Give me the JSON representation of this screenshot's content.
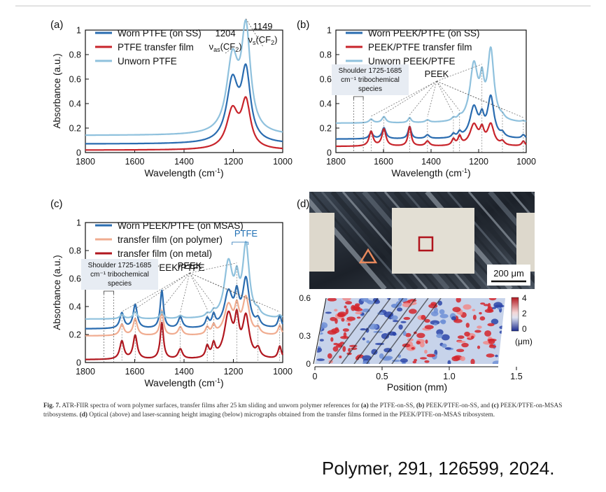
{
  "chart_data": [
    {
      "panel": "(a)",
      "type": "line",
      "xlabel": "Wavelength (cm",
      "xlabel_sup": "-1",
      "xlabel_close": ")",
      "ylabel": "Absorbance (a.u.)",
      "xlim": [
        1800,
        1000
      ],
      "ylim": [
        0,
        1
      ],
      "xticks": [
        1800,
        1600,
        1400,
        1200,
        1000
      ],
      "yticks": [
        0,
        0.2,
        0.4,
        0.6,
        0.8,
        1
      ],
      "legend": "top-left",
      "annotations": [
        {
          "peak": "1204",
          "label_main": "ν",
          "label_sub": "as",
          "label_tail": "(CF",
          "label_sub2": "2",
          "label_end": ")"
        },
        {
          "peak": "1149",
          "label_main": "ν",
          "label_sub": "s",
          "label_tail": "(CF",
          "label_sub2": "2",
          "label_end": ")"
        }
      ],
      "series": [
        {
          "name": "Worn PTFE (on SS)",
          "color": "#2a6cb0",
          "baseline": 0.07,
          "peaks": [
            [
              1204,
              0.49,
              28
            ],
            [
              1149,
              0.55,
              22
            ]
          ]
        },
        {
          "name": "PTFE transfer film",
          "color": "#c8242b",
          "baseline": 0.02,
          "peaks": [
            [
              1204,
              0.31,
              28
            ],
            [
              1149,
              0.37,
              22
            ]
          ]
        },
        {
          "name": "Unworn PTFE",
          "color": "#8fc1dd",
          "baseline": 0.14,
          "peaks": [
            [
              1204,
              0.59,
              28
            ],
            [
              1149,
              0.82,
              22
            ]
          ]
        }
      ]
    },
    {
      "panel": "(b)",
      "type": "line",
      "xlabel": "Wavelength (cm",
      "xlabel_sup": "-1",
      "xlabel_close": ")",
      "ylabel": "",
      "xlim": [
        1800,
        1000
      ],
      "ylim": [
        0,
        1
      ],
      "xticks": [
        1800,
        1600,
        1400,
        1200,
        1000
      ],
      "yticks": [
        0,
        0.2,
        0.4,
        0.6,
        0.8,
        1
      ],
      "legend": "top-left",
      "peek_label": "PEEK",
      "shoulder_label": [
        "Shoulder 1725-1685",
        "cm⁻¹ tribochemical",
        "species"
      ],
      "series": [
        {
          "name": "Worn PEEK/PTFE (on SS)",
          "color": "#2a6cb0",
          "baseline": 0.11,
          "peaks": [
            [
              1652,
              0.05,
              10
            ],
            [
              1598,
              0.09,
              10
            ],
            [
              1490,
              0.1,
              8
            ],
            [
              1415,
              0.03,
              10
            ],
            [
              1306,
              0.03,
              8
            ],
            [
              1280,
              0.04,
              8
            ],
            [
              1220,
              0.25,
              20
            ],
            [
              1186,
              0.13,
              10
            ],
            [
              1149,
              0.33,
              16
            ],
            [
              1100,
              0.03,
              10
            ],
            [
              1012,
              0.03,
              8
            ]
          ]
        },
        {
          "name": "PEEK/PTFE transfer film",
          "color": "#c8242b",
          "baseline": 0.05,
          "peaks": [
            [
              1652,
              0.12,
              10
            ],
            [
              1598,
              0.14,
              10
            ],
            [
              1490,
              0.16,
              8
            ],
            [
              1415,
              0.04,
              10
            ],
            [
              1306,
              0.05,
              8
            ],
            [
              1280,
              0.07,
              8
            ],
            [
              1220,
              0.17,
              20
            ],
            [
              1186,
              0.11,
              10
            ],
            [
              1149,
              0.17,
              16
            ],
            [
              1100,
              0.03,
              10
            ],
            [
              1012,
              0.04,
              8
            ]
          ]
        },
        {
          "name": "Unworn PEEK/PTFE",
          "color": "#8fc1dd",
          "baseline": 0.24,
          "peaks": [
            [
              1652,
              0.03,
              10
            ],
            [
              1598,
              0.05,
              10
            ],
            [
              1490,
              0.04,
              8
            ],
            [
              1415,
              0.02,
              10
            ],
            [
              1306,
              0.02,
              8
            ],
            [
              1280,
              0.02,
              8
            ],
            [
              1220,
              0.46,
              20
            ],
            [
              1186,
              0.25,
              10
            ],
            [
              1149,
              0.57,
              16
            ],
            [
              1100,
              0.02,
              10
            ],
            [
              1012,
              0.01,
              8
            ]
          ]
        }
      ]
    },
    {
      "panel": "(c)",
      "type": "line",
      "xlabel": "Wavelength (cm",
      "xlabel_sup": "-1",
      "xlabel_close": ")",
      "ylabel": "Absorbance (a.u.)",
      "xlim": [
        1800,
        1000
      ],
      "ylim": [
        0,
        1
      ],
      "xticks": [
        1800,
        1600,
        1400,
        1200,
        1000
      ],
      "yticks": [
        0,
        0.2,
        0.4,
        0.6,
        0.8,
        1
      ],
      "legend": "top-left",
      "peek_label": "PEEK",
      "ptfe_label": "PTFE",
      "shoulder_label": [
        "Shoulder 1725-1685",
        "cm⁻¹ tribochemical",
        "species"
      ],
      "series": [
        {
          "name": "Worn PEEK/PTFE (on MSAS)",
          "color": "#2a6cb0",
          "baseline": 0.24,
          "peaks": [
            [
              1652,
              0.11,
              10
            ],
            [
              1598,
              0.17,
              10
            ],
            [
              1490,
              0.27,
              8
            ],
            [
              1415,
              0.08,
              10
            ],
            [
              1306,
              0.06,
              8
            ],
            [
              1280,
              0.08,
              8
            ],
            [
              1220,
              0.25,
              20
            ],
            [
              1186,
              0.19,
              10
            ],
            [
              1149,
              0.34,
              16
            ],
            [
              1100,
              0.05,
              10
            ],
            [
              1012,
              0.09,
              8
            ]
          ]
        },
        {
          "name": "transfer film (on polymer)",
          "color": "#f0ac90",
          "baseline": 0.19,
          "peaks": [
            [
              1652,
              0.08,
              10
            ],
            [
              1598,
              0.12,
              10
            ],
            [
              1490,
              0.18,
              8
            ],
            [
              1415,
              0.06,
              10
            ],
            [
              1306,
              0.05,
              8
            ],
            [
              1280,
              0.06,
              8
            ],
            [
              1220,
              0.21,
              20
            ],
            [
              1186,
              0.16,
              10
            ],
            [
              1149,
              0.26,
              16
            ],
            [
              1100,
              0.04,
              10
            ],
            [
              1012,
              0.07,
              8
            ]
          ]
        },
        {
          "name": "transfer film (on metal)",
          "color": "#b1171f",
          "baseline": 0.02,
          "peaks": [
            [
              1652,
              0.13,
              10
            ],
            [
              1598,
              0.17,
              10
            ],
            [
              1490,
              0.26,
              8
            ],
            [
              1415,
              0.07,
              10
            ],
            [
              1306,
              0.08,
              8
            ],
            [
              1280,
              0.09,
              8
            ],
            [
              1220,
              0.31,
              20
            ],
            [
              1186,
              0.23,
              10
            ],
            [
              1149,
              0.29,
              16
            ],
            [
              1100,
              0.06,
              10
            ],
            [
              1012,
              0.09,
              8
            ]
          ]
        },
        {
          "name": "Unworn PEEK/PTFE",
          "color": "#8fc1dd",
          "baseline": 0.31,
          "peaks": [
            [
              1652,
              0.03,
              10
            ],
            [
              1598,
              0.05,
              10
            ],
            [
              1490,
              0.05,
              8
            ],
            [
              1415,
              0.02,
              10
            ],
            [
              1306,
              0.02,
              8
            ],
            [
              1280,
              0.03,
              8
            ],
            [
              1220,
              0.39,
              20
            ],
            [
              1186,
              0.2,
              10
            ],
            [
              1149,
              0.51,
              16
            ],
            [
              1100,
              0.03,
              10
            ],
            [
              1012,
              0.02,
              8
            ]
          ]
        }
      ]
    },
    {
      "panel": "(d)",
      "type": "heatmap",
      "scale_bar": "200 μm",
      "xlabel": "Position (mm)",
      "xlim": [
        0,
        1.5
      ],
      "xticks": [
        "0",
        "0.5",
        "1.0",
        "1.5"
      ],
      "yticks": [
        "0",
        "0.3",
        "0.6"
      ],
      "colorbar_ticks": [
        "4",
        "2",
        "0"
      ],
      "colorbar_unit": "(μm)"
    }
  ],
  "caption": {
    "lead": "Fig. 7.",
    "text1": " ATR-FIIR spectra of worn polymer surfaces, transfer films after 25 km sliding and unworn polymer references for ",
    "b1": "(a)",
    "text2": " the PTFE-on-SS, ",
    "b2": "(b)",
    "text3": " PEEK/PTFE-on-SS, and ",
    "b3": "(c)",
    "text4": " PEEK/PTFE-on-MSAS tribosystems. ",
    "b4": "(d)",
    "text5": " Optical (above) and laser-scanning height imaging (below) micrographs obtained from the transfer films formed in the PEEK/PTFE-on-MSAS tribosystem."
  },
  "citation": "Polymer, 291, 126599, 2024."
}
